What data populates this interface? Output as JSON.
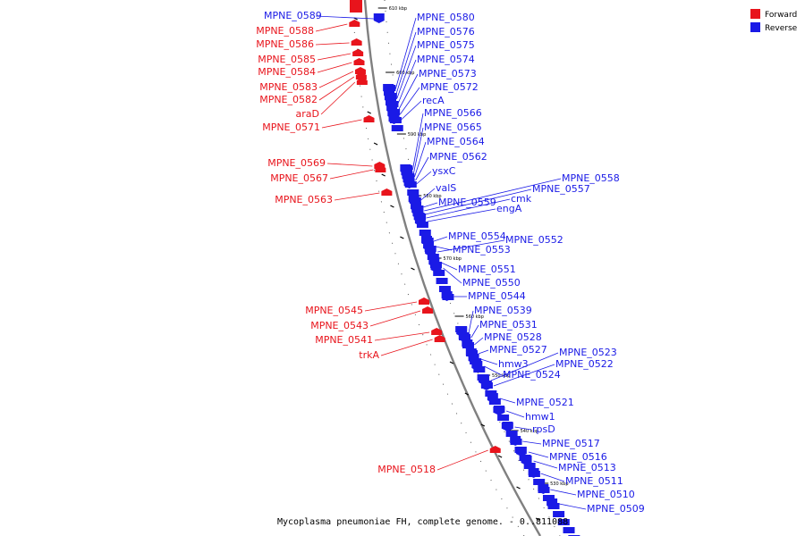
{
  "title": "Mycoplasma pneumoniae FH, complete genome. - 0..811088",
  "legend": [
    {
      "label": "Forward",
      "color": "#e8141c"
    },
    {
      "label": "Reverse",
      "color": "#1a1ae6"
    }
  ],
  "ticks": [
    "610 kbp",
    "600 kbp",
    "590 kbp",
    "580 kbp",
    "570 kbp",
    "560 kbp",
    "550 kbp",
    "540 kbp",
    "530 kbp"
  ],
  "forward_genes": [
    "MPNE_0588",
    "MPNE_0586",
    "MPNE_0585",
    "MPNE_0584",
    "MPNE_0583",
    "MPNE_0582",
    "araD",
    "MPNE_0571",
    "MPNE_0569",
    "MPNE_0567",
    "MPNE_0563",
    "MPNE_0545",
    "MPNE_0543",
    "MPNE_0541",
    "trkA",
    "MPNE_0518"
  ],
  "reverse_genes": [
    "MPNE_0589",
    "MPNE_0580",
    "MPNE_0576",
    "MPNE_0575",
    "MPNE_0574",
    "MPNE_0573",
    "MPNE_0572",
    "recA",
    "MPNE_0566",
    "MPNE_0565",
    "MPNE_0564",
    "MPNE_0562",
    "ysxC",
    "valS",
    "MPNE_0559",
    "MPNE_0558",
    "MPNE_0557",
    "cmk",
    "engA",
    "MPNE_0554",
    "MPNE_0553",
    "MPNE_0552",
    "MPNE_0551",
    "MPNE_0550",
    "MPNE_0544",
    "MPNE_0539",
    "MPNE_0531",
    "MPNE_0528",
    "MPNE_0527",
    "hmw3",
    "MPNE_0524",
    "MPNE_0523",
    "MPNE_0522",
    "MPNE_0521",
    "hmw1",
    "rpsD",
    "MPNE_0517",
    "MPNE_0516",
    "MPNE_0513",
    "MPNE_0511",
    "MPNE_0510",
    "MPNE_0509"
  ]
}
